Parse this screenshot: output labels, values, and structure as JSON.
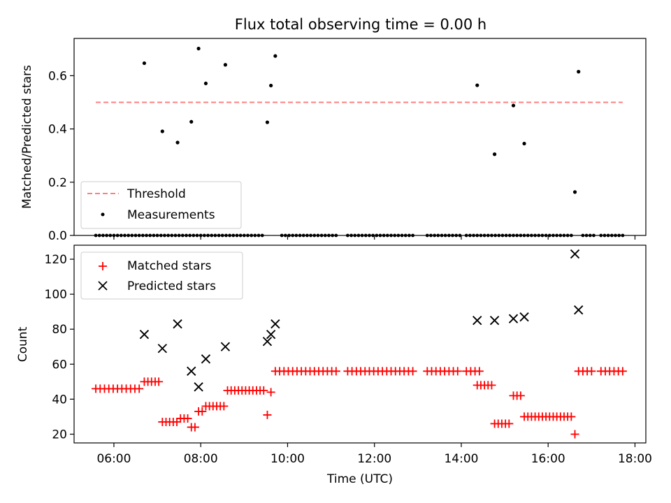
{
  "title": "Flux total observing time = 0.00 h",
  "chart_data": [
    {
      "type": "scatter",
      "ylabel": "Matched/Predicted stars",
      "xlabel": "",
      "xlim": [
        "05:05",
        "18:15"
      ],
      "ylim": [
        0,
        0.74
      ],
      "yticks": [
        0.0,
        0.2,
        0.4,
        0.6
      ],
      "ytick_labels": [
        "0.0",
        "0.2",
        "0.4",
        "0.6"
      ],
      "legend_position": "lower-left",
      "threshold": {
        "name": "Threshold",
        "value": 0.5,
        "x_start": "05:35",
        "x_end": "17:43",
        "color": "#ff7f7f"
      },
      "measurements": {
        "name": "Measurements",
        "color": "#000000",
        "points": [
          [
            "06:42",
            0.647
          ],
          [
            "07:07",
            0.391
          ],
          [
            "07:28",
            0.349
          ],
          [
            "07:47",
            0.427
          ],
          [
            "07:57",
            0.702
          ],
          [
            "08:07",
            0.571
          ],
          [
            "08:34",
            0.641
          ],
          [
            "09:32",
            0.425
          ],
          [
            "09:37",
            0.563
          ],
          [
            "09:43",
            0.674
          ],
          [
            "14:22",
            0.564
          ],
          [
            "14:46",
            0.305
          ],
          [
            "15:12",
            0.488
          ],
          [
            "15:27",
            0.345
          ],
          [
            "16:37",
            0.163
          ],
          [
            "16:42",
            0.615
          ]
        ],
        "zero_ranges": [
          [
            "05:35",
            "09:27"
          ],
          [
            "09:52",
            "11:10"
          ],
          [
            "11:23",
            "12:55"
          ],
          [
            "13:13",
            "13:58"
          ],
          [
            "14:07",
            "16:27"
          ],
          [
            "16:32",
            "16:32"
          ],
          [
            "16:48",
            "17:03"
          ],
          [
            "17:13",
            "17:43"
          ]
        ]
      }
    },
    {
      "type": "scatter",
      "xlabel": "Time (UTC)",
      "ylabel": "Count",
      "xlim": [
        "05:05",
        "18:15"
      ],
      "ylim": [
        15,
        128
      ],
      "xticks": [
        "06:00",
        "08:00",
        "10:00",
        "12:00",
        "14:00",
        "16:00",
        "18:00"
      ],
      "yticks": [
        20,
        40,
        60,
        80,
        100,
        120
      ],
      "legend_position": "upper-left",
      "series": [
        {
          "name": "Matched stars",
          "marker": "plus",
          "color": "#ff0000",
          "segments": [
            {
              "from": "05:35",
              "to": "06:35",
              "step": 6,
              "value": 46
            },
            {
              "from": "06:42",
              "to": "07:02",
              "step": 5,
              "value": 50
            },
            {
              "from": "07:07",
              "to": "07:27",
              "step": 5,
              "value": 27
            },
            {
              "from": "07:32",
              "to": "07:42",
              "step": 5,
              "value": 29
            },
            {
              "from": "07:47",
              "to": "07:52",
              "step": 5,
              "value": 24
            },
            {
              "from": "07:57",
              "to": "08:02",
              "step": 5,
              "value": 33
            },
            {
              "from": "08:07",
              "to": "08:32",
              "step": 5,
              "value": 36
            },
            {
              "from": "08:37",
              "to": "09:27",
              "step": 5,
              "value": 45
            },
            {
              "from": "09:32",
              "to": "09:32",
              "step": 5,
              "value": 31
            },
            {
              "from": "09:37",
              "to": "09:37",
              "step": 5,
              "value": 44
            },
            {
              "from": "09:43",
              "to": "11:10",
              "step": 6,
              "value": 56
            },
            {
              "from": "11:23",
              "to": "12:55",
              "step": 6,
              "value": 56
            },
            {
              "from": "13:13",
              "to": "13:58",
              "step": 6,
              "value": 56
            },
            {
              "from": "14:07",
              "to": "14:25",
              "step": 6,
              "value": 56
            },
            {
              "from": "14:22",
              "to": "14:42",
              "step": 5,
              "value": 48
            },
            {
              "from": "14:46",
              "to": "15:06",
              "step": 5,
              "value": 26
            },
            {
              "from": "15:12",
              "to": "15:22",
              "step": 5,
              "value": 42
            },
            {
              "from": "15:27",
              "to": "16:32",
              "step": 5,
              "value": 30
            },
            {
              "from": "16:37",
              "to": "16:37",
              "step": 5,
              "value": 20
            },
            {
              "from": "16:42",
              "to": "17:03",
              "step": 6,
              "value": 56
            },
            {
              "from": "17:13",
              "to": "17:43",
              "step": 6,
              "value": 56
            }
          ]
        },
        {
          "name": "Predicted stars",
          "marker": "x",
          "color": "#000000",
          "points": [
            [
              "06:42",
              77
            ],
            [
              "07:07",
              69
            ],
            [
              "07:28",
              83
            ],
            [
              "07:47",
              56
            ],
            [
              "07:57",
              47
            ],
            [
              "08:07",
              63
            ],
            [
              "08:34",
              70
            ],
            [
              "09:32",
              73
            ],
            [
              "09:37",
              77
            ],
            [
              "09:43",
              83
            ],
            [
              "14:22",
              85
            ],
            [
              "14:46",
              85
            ],
            [
              "15:12",
              86
            ],
            [
              "15:27",
              87
            ],
            [
              "16:37",
              123
            ],
            [
              "16:42",
              91
            ]
          ]
        }
      ]
    }
  ]
}
